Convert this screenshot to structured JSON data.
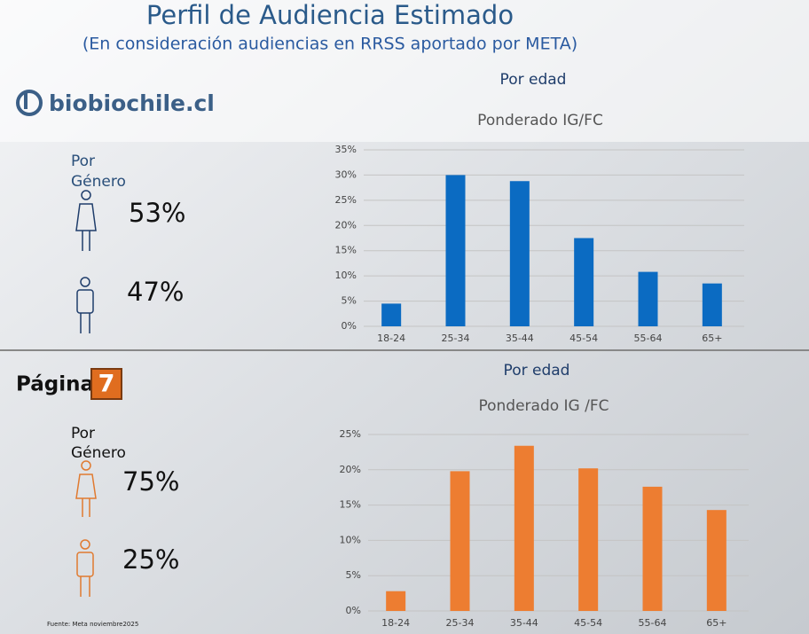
{
  "header": {
    "title": "Perfil de Audiencia Estimado",
    "subtitle": "(En consideración audiencias en RRSS aportado por META)"
  },
  "sections": [
    {
      "brand": "biobiochile.cl",
      "gender_label_1": "Por",
      "gender_label_2": "Género",
      "female": "53%",
      "male": "47%"
    },
    {
      "brand": "Página",
      "brand_number": "7",
      "gender_label_1": "Por",
      "gender_label_2": "Género",
      "female": "75%",
      "male": "25%"
    }
  ],
  "footer": {
    "source": "Fuente: Meta  noviembre2025"
  },
  "chart_data": [
    {
      "type": "bar",
      "title": "Por edad",
      "subtitle": "Ponderado IG/FC",
      "categories": [
        "18-24",
        "25-34",
        "35-44",
        "45-54",
        "55-64",
        "65+"
      ],
      "values": [
        4.5,
        30,
        28.8,
        17.5,
        10.8,
        8.5
      ],
      "color": "#0b6bc2",
      "ylim": [
        0,
        35
      ],
      "yticks": [
        {
          "value": 0,
          "label": "0%"
        },
        {
          "value": 5,
          "label": "5%"
        },
        {
          "value": 10,
          "label": "10%"
        },
        {
          "value": 15,
          "label": "15%"
        },
        {
          "value": 20,
          "label": "20%"
        },
        {
          "value": 25,
          "label": "25%"
        },
        {
          "value": 30,
          "label": "30%"
        },
        {
          "value": 35,
          "label": "35%"
        }
      ],
      "grid": true
    },
    {
      "type": "bar",
      "title": "Por edad",
      "subtitle": "Ponderado IG /FC",
      "categories": [
        "18-24",
        "25-34",
        "35-44",
        "45-54",
        "55-64",
        "65+"
      ],
      "values": [
        2.8,
        19.8,
        23.4,
        20.2,
        17.6,
        14.3
      ],
      "color": "#ed7d31",
      "ylim": [
        0,
        25
      ],
      "yticks": [
        {
          "value": 0,
          "label": "0%"
        },
        {
          "value": 5,
          "label": "5%"
        },
        {
          "value": 10,
          "label": "10%"
        },
        {
          "value": 15,
          "label": "15%"
        },
        {
          "value": 20,
          "label": "20%"
        },
        {
          "value": 25,
          "label": "25%"
        }
      ],
      "grid": true
    }
  ]
}
